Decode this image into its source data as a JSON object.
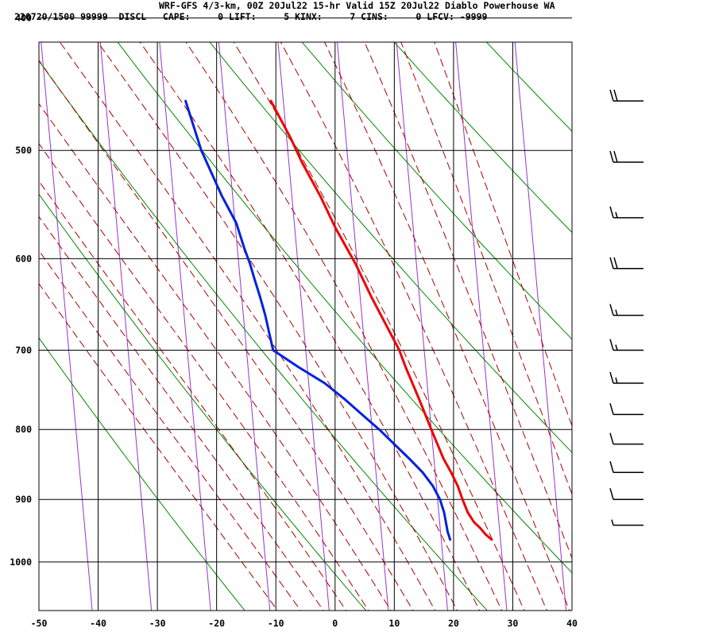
{
  "header": {
    "line1": "WRF-GFS 4/3-km, 00Z 20Jul22 15-hr Valid 15Z 20Jul22 Diablo Powerhouse WA",
    "line2": "220720/1500 99999  DISCL   CAPE:     0 LIFT:     5 KINX:     7 CINS:     0 LFCV: -9999"
  },
  "chart_data": {
    "type": "line",
    "chart_kind": "skew-T log-P sounding",
    "x_ticks": [
      -50,
      -40,
      -30,
      -20,
      -10,
      0,
      10,
      20,
      30,
      40
    ],
    "xlim": [
      -50,
      40
    ],
    "y_ticks": [
      400,
      500,
      600,
      700,
      800,
      900,
      1000
    ],
    "ylim": [
      400,
      1050
    ],
    "y_scale": "log (pressure)",
    "grid": true,
    "colors": {
      "temperature": "#ee0000",
      "dewpoint": "#0022dd",
      "isotherm": "#9933cc",
      "dry_adiabat": "#008800",
      "moist_adiabat": "#aa0000",
      "grid": "#000000"
    },
    "series": [
      {
        "key": "temperature",
        "p": [
          963,
          955,
          945,
          935,
          920,
          900,
          880,
          860,
          840,
          800,
          760,
          720,
          700,
          670,
          640,
          605,
          570,
          540,
          510,
          490,
          460
        ],
        "t": [
          18.5,
          17.6,
          16.8,
          15.8,
          14.9,
          14.2,
          13.6,
          12.7,
          11.6,
          10.0,
          8.4,
          6.6,
          5.8,
          3.9,
          1.9,
          -0.3,
          -3.1,
          -5.2,
          -7.8,
          -9.3,
          -12.1
        ]
      },
      {
        "key": "dewpoint",
        "p": [
          963,
          950,
          920,
          900,
          880,
          860,
          840,
          800,
          780,
          760,
          740,
          720,
          700,
          680,
          660,
          640,
          620,
          605,
          590,
          565,
          540,
          500,
          460
        ],
        "t": [
          11.5,
          11.2,
          10.9,
          10.4,
          9.4,
          7.9,
          5.8,
          1.2,
          -1.5,
          -4.2,
          -7.3,
          -11.5,
          -15.5,
          -15.9,
          -16.3,
          -16.9,
          -17.6,
          -18.1,
          -18.8,
          -19.8,
          -21.8,
          -24.6,
          -26.5
        ]
      }
    ],
    "wind_barbs": [
      {
        "p": 460,
        "speed_kt": 20
      },
      {
        "p": 510,
        "speed_kt": 20
      },
      {
        "p": 560,
        "speed_kt": 15
      },
      {
        "p": 610,
        "speed_kt": 20
      },
      {
        "p": 660,
        "speed_kt": 15
      },
      {
        "p": 700,
        "speed_kt": 15
      },
      {
        "p": 740,
        "speed_kt": 15
      },
      {
        "p": 780,
        "speed_kt": 10
      },
      {
        "p": 820,
        "speed_kt": 10
      },
      {
        "p": 860,
        "speed_kt": 10
      },
      {
        "p": 900,
        "speed_kt": 10
      },
      {
        "p": 940,
        "speed_kt": 5
      }
    ]
  }
}
